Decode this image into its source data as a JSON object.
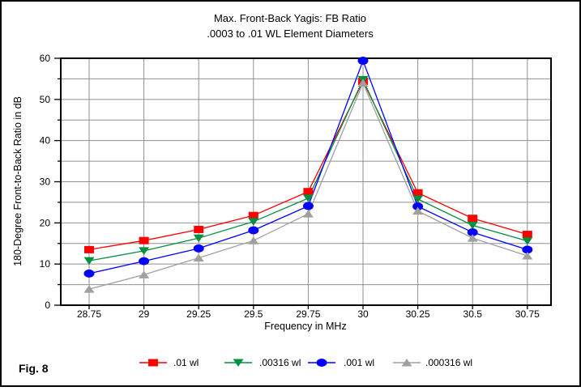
{
  "figure_label": "Fig. 8",
  "chart_data": {
    "type": "line",
    "title": "Max. Front-Back Yagis: FB Ratio",
    "subtitle": ".0003 to .01 WL Element Diameters",
    "xlabel": "Frequency in MHz",
    "ylabel": "180-Degree Front-to-Back Ratio in dB",
    "x": [
      28.75,
      29,
      29.25,
      29.5,
      29.75,
      30,
      30.25,
      30.5,
      30.75
    ],
    "xtick_labels": [
      "28.75",
      "29",
      "29.25",
      "29.5",
      "29.75",
      "30",
      "30.25",
      "30.5",
      "30.75"
    ],
    "ylim": [
      0,
      60
    ],
    "ytick_major": [
      0,
      10,
      20,
      30,
      40,
      50,
      60
    ],
    "ytick_minor_step": 5,
    "grid": true,
    "legend_position": "bottom",
    "series": [
      {
        "name": ".01 wl",
        "color": "#FF0000",
        "marker": "square",
        "values": [
          13.5,
          15.7,
          18.4,
          21.8,
          27.6,
          54.4,
          27.3,
          21.1,
          17.2
        ]
      },
      {
        "name": ".00316 wl",
        "color": "#009040",
        "marker": "triangle-down",
        "values": [
          10.8,
          13.2,
          16.3,
          20.3,
          26.0,
          54.8,
          25.8,
          19.4,
          15.6
        ]
      },
      {
        "name": ".001 wl",
        "color": "#0000FF",
        "marker": "circle",
        "values": [
          7.7,
          10.7,
          13.8,
          18.2,
          24.1,
          59.4,
          24.0,
          17.7,
          13.5
        ]
      },
      {
        "name": ".000316 wl",
        "color": "#A0A0A0",
        "marker": "triangle-up",
        "values": [
          3.9,
          7.4,
          11.5,
          15.7,
          22.2,
          54.0,
          22.9,
          16.3,
          12.0
        ]
      }
    ],
    "colors": {
      "grid": "#909090",
      "axis": "#000000",
      "background": "#FFFFFF"
    }
  }
}
